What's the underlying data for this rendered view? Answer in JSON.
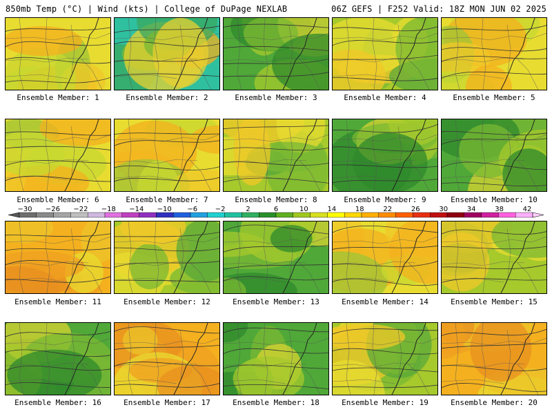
{
  "header": {
    "left": "850mb Temp (°C) | Wind (kts) | College of DuPage NEXLAB",
    "right": "06Z GEFS | F252 Valid: 18Z MON JUN 02 2025"
  },
  "panels": [
    {
      "label": "Ensemble Member: 1",
      "palette": "warm"
    },
    {
      "label": "Ensemble Member: 2",
      "palette": "cool"
    },
    {
      "label": "Ensemble Member: 3",
      "palette": "green"
    },
    {
      "label": "Ensemble Member: 4",
      "palette": "mixed"
    },
    {
      "label": "Ensemble Member: 5",
      "palette": "warm"
    },
    {
      "label": "Ensemble Member: 6",
      "palette": "warm"
    },
    {
      "label": "Ensemble Member: 7",
      "palette": "warm"
    },
    {
      "label": "Ensemble Member: 8",
      "palette": "mixed"
    },
    {
      "label": "Ensemble Member: 9",
      "palette": "green"
    },
    {
      "label": "Ensemble Member: 10",
      "palette": "green"
    },
    {
      "label": "Ensemble Member: 11",
      "palette": "hot"
    },
    {
      "label": "Ensemble Member: 12",
      "palette": "mixed"
    },
    {
      "label": "Ensemble Member: 13",
      "palette": "green"
    },
    {
      "label": "Ensemble Member: 14",
      "palette": "warm"
    },
    {
      "label": "Ensemble Member: 15",
      "palette": "mixed"
    },
    {
      "label": "Ensemble Member: 16",
      "palette": "green"
    },
    {
      "label": "Ensemble Member: 17",
      "palette": "hot"
    },
    {
      "label": "Ensemble Member: 18",
      "palette": "green"
    },
    {
      "label": "Ensemble Member: 19",
      "palette": "mixed"
    },
    {
      "label": "Ensemble Member: 20",
      "palette": "hot"
    }
  ],
  "colorbar": {
    "tick_labels": [
      "−30",
      "−26",
      "−22",
      "−18",
      "−14",
      "−10",
      "−6",
      "−2",
      "2",
      "6",
      "10",
      "14",
      "18",
      "22",
      "26",
      "30",
      "34",
      "38",
      "42"
    ],
    "colors": [
      "#6e6e6e",
      "#8a8a8a",
      "#a5a5a5",
      "#bfbfbf",
      "#d0b8e0",
      "#e070e0",
      "#c040c0",
      "#9030c0",
      "#3030c0",
      "#2060e0",
      "#20a0e0",
      "#20d0d0",
      "#20c0a0",
      "#30b060",
      "#2a8f2a",
      "#60b020",
      "#a0c820",
      "#d8e020",
      "#ffff00",
      "#ffd700",
      "#ffb000",
      "#ff8c00",
      "#ff6000",
      "#e83010",
      "#c01010",
      "#900010",
      "#a00060",
      "#d020a0",
      "#ff60e0",
      "#ffb0ff"
    ]
  }
}
